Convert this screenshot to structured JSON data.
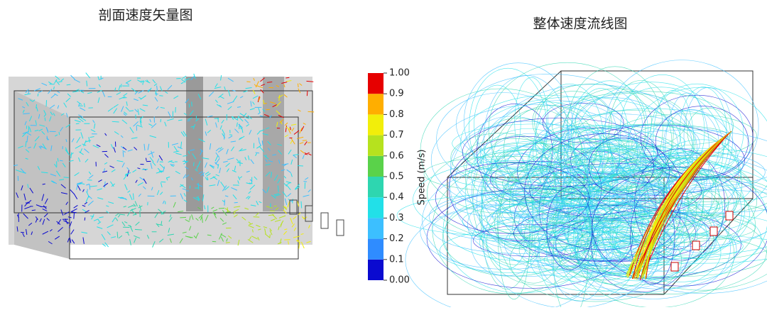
{
  "titles": {
    "left": "剖面速度矢量图",
    "right": "整体速度流线图"
  },
  "colorbar": {
    "label": "Speed (m/s)",
    "range": [
      0,
      1
    ],
    "colors": [
      "#0a0ad0",
      "#2f8cff",
      "#3cbfff",
      "#22e0e8",
      "#2ed6b0",
      "#5ad24a",
      "#b6e21e",
      "#f2ee0a",
      "#ffae00",
      "#e60000"
    ],
    "ticks": [
      {
        "value": 1,
        "label": "1.00"
      },
      {
        "value": 0.9,
        "label": "0.9"
      },
      {
        "value": 0.8,
        "label": "0.8"
      },
      {
        "value": 0.7,
        "label": "0.7"
      },
      {
        "value": 0.6,
        "label": "0.6"
      },
      {
        "value": 0.5,
        "label": "0.5"
      },
      {
        "value": 0.4,
        "label": "0.4"
      },
      {
        "value": 0.3,
        "label": "0.3"
      },
      {
        "value": 0.2,
        "label": "0.2"
      },
      {
        "value": 0.1,
        "label": "0.1"
      },
      {
        "value": 0,
        "label": "0.00"
      }
    ]
  }
}
